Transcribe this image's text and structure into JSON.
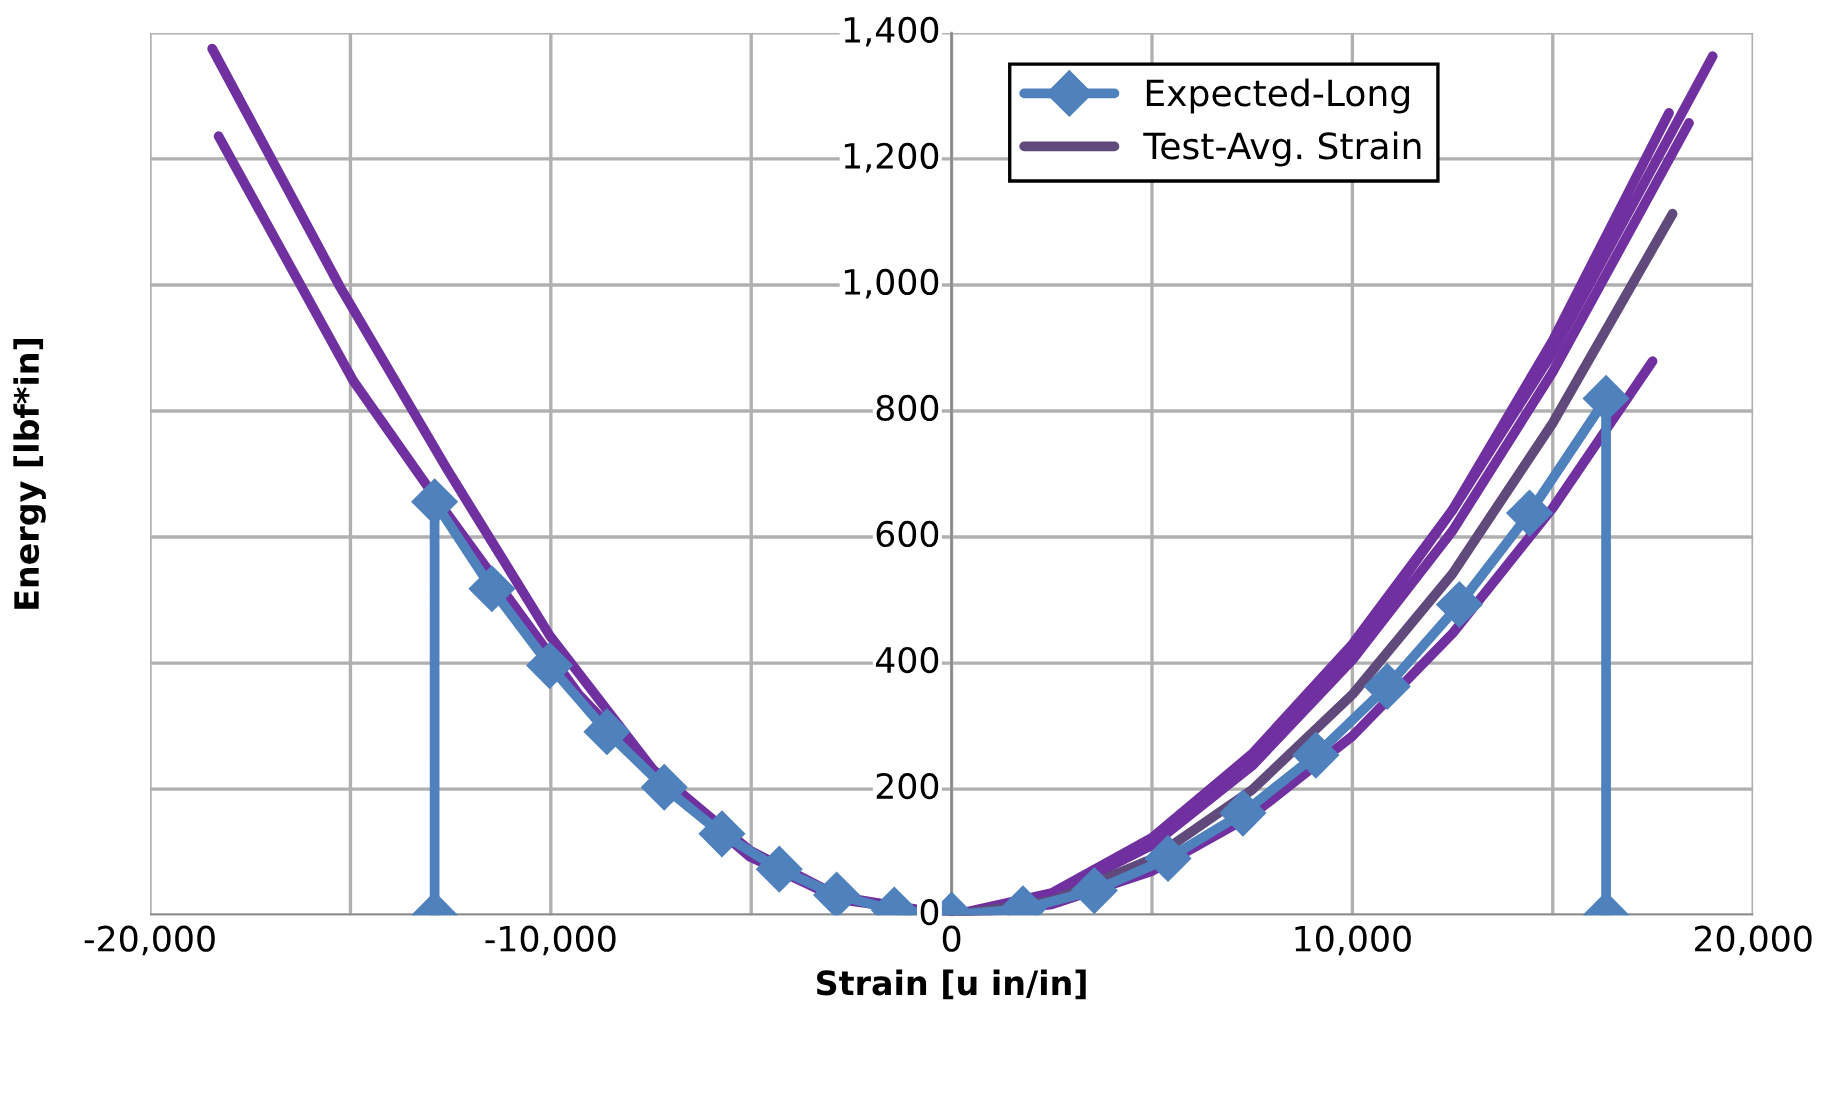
{
  "chart_data": {
    "type": "line",
    "xlabel": "Strain [u in/in]",
    "ylabel": "Energy [lbf*in]",
    "xlim": [
      -20000,
      20000
    ],
    "xticks": [
      {
        "value": -20000,
        "label": "-20,000"
      },
      {
        "value": -15000,
        "label": null
      },
      {
        "value": -10000,
        "label": "-10,000"
      },
      {
        "value": -5000,
        "label": null
      },
      0,
      {
        "value": 5000,
        "label": null
      },
      {
        "value": 10000,
        "label": "10,000"
      },
      {
        "value": 15000,
        "label": null
      },
      {
        "value": 20000,
        "label": "20,000"
      }
    ],
    "ylim": [
      0,
      1400
    ],
    "yticks": [
      0,
      200,
      400,
      600,
      800,
      {
        "value": 1000,
        "label": "1,000"
      },
      {
        "value": 1200,
        "label": "1,200"
      },
      {
        "value": 1400,
        "label": "1,400"
      }
    ],
    "grid": true,
    "legend": "top",
    "series": [
      {
        "name": "Expected-Long",
        "color": "#4f81bd",
        "marker": "diamond",
        "x": [
          -12900,
          -12900,
          -11470,
          -10030,
          -8600,
          -7170,
          -5730,
          -4300,
          -2870,
          -1430,
          0,
          1780,
          3560,
          5400,
          7270,
          9090,
          10870,
          12670,
          14420,
          16330,
          16330
        ],
        "values": [
          0,
          656,
          518,
          396,
          291,
          203,
          129,
          73,
          32,
          8,
          0,
          10,
          39,
          90,
          162,
          254,
          363,
          493,
          638,
          820,
          0
        ]
      },
      {
        "color": "#7030a0",
        "x": [
          -18450,
          -15260,
          -12600,
          -10020,
          -7450,
          -5040,
          -2790,
          0,
          2500,
          5000,
          7500,
          10000,
          12500,
          15000,
          18990
        ],
        "values": [
          1375,
          997,
          709,
          443,
          231,
          103,
          29,
          0,
          35,
          123,
          256,
          430,
          643,
          893,
          1363
        ]
      },
      {
        "color": "#7030a0",
        "x": [
          -18290,
          -14930,
          -12930,
          -9300,
          -7280,
          -5040,
          -2790,
          0,
          2500,
          5000,
          7500,
          10000,
          12500,
          15000,
          17490
        ],
        "values": [
          1236,
          848,
          667,
          350,
          215,
          93,
          25,
          0,
          17,
          70,
          159,
          284,
          447,
          646,
          879
        ]
      },
      {
        "color": "#7030a0",
        "x": [
          0,
          2500,
          5000,
          7500,
          10000,
          12500,
          15000,
          17900
        ],
        "values": [
          0,
          30,
          112,
          243,
          420,
          643,
          912,
          1273
        ]
      },
      {
        "color": "#7030a0",
        "x": [
          0,
          2500,
          5000,
          7500,
          10000,
          12500,
          15000,
          18400
        ],
        "values": [
          0,
          31,
          111,
          237,
          405,
          610,
          862,
          1257
        ]
      },
      {
        "name": "Test-Avg. Strain",
        "color": "#604a7b",
        "x": [
          0,
          2500,
          5000,
          7500,
          10000,
          12500,
          15000,
          17990
        ],
        "values": [
          0,
          23,
          89,
          199,
          350,
          542,
          781,
          1113
        ]
      }
    ]
  }
}
